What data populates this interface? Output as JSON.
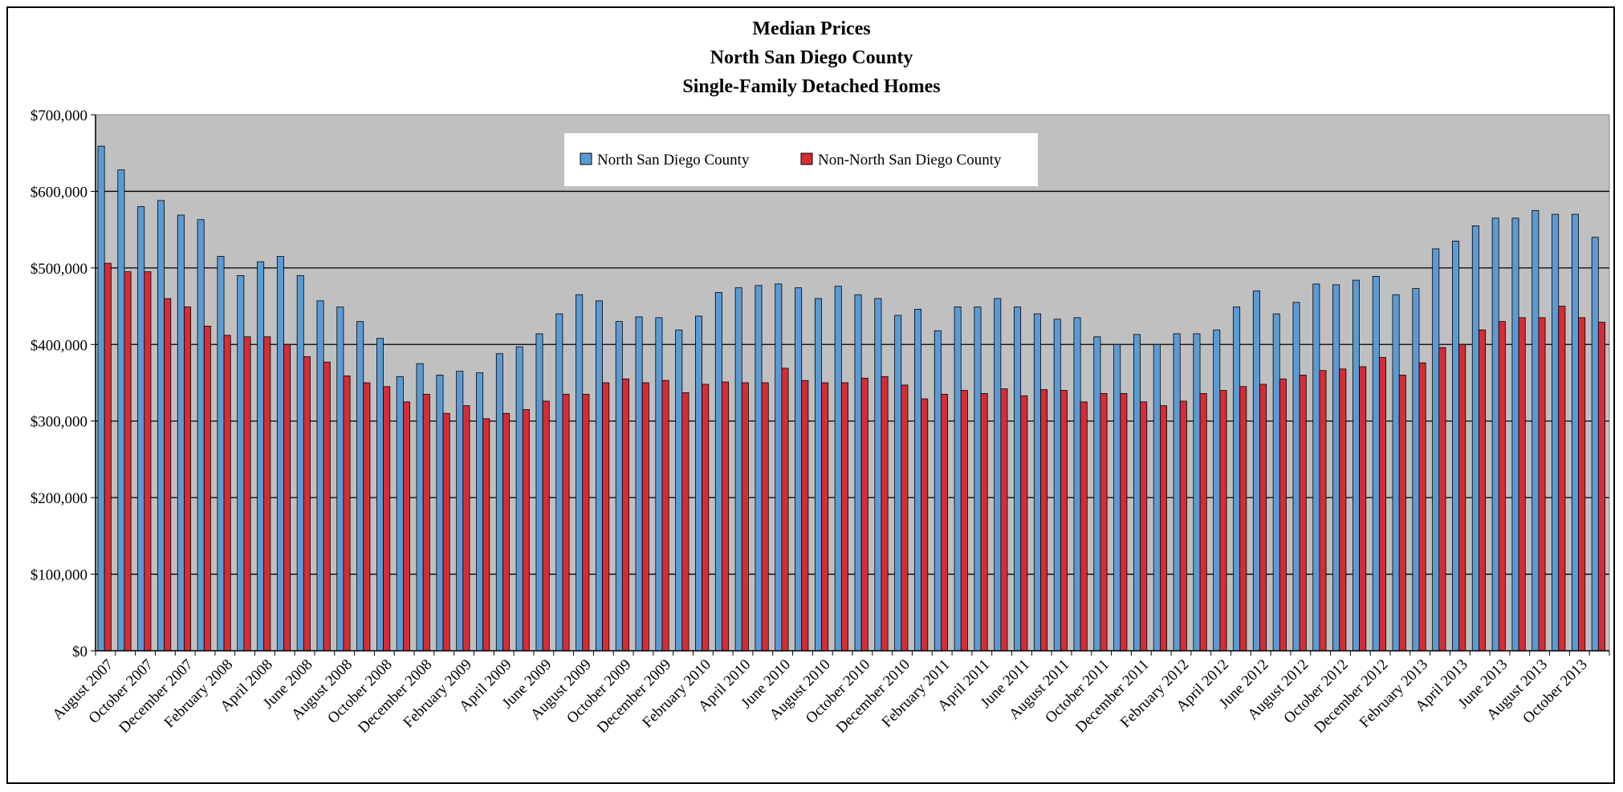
{
  "chart_data": {
    "type": "bar",
    "title_lines": [
      "Median Prices",
      "North San Diego County",
      "Single-Family Detached Homes"
    ],
    "ylim": [
      0,
      700000
    ],
    "y_ticks": [
      "$0",
      "$100,000",
      "$200,000",
      "$300,000",
      "$400,000",
      "$500,000",
      "$600,000",
      "$700,000"
    ],
    "grid": true,
    "legend_position": "top-center",
    "legend": [
      {
        "name": "North San Diego County",
        "color": "#5b9bd5"
      },
      {
        "name": "Non-North San Diego County",
        "color": "#d62c35"
      }
    ],
    "x_labels": [
      "August 2007",
      "October 2007",
      "December 2007",
      "February 2008",
      "April 2008",
      "June 2008",
      "August 2008",
      "October 2008",
      "December 2008",
      "February 2009",
      "April 2009",
      "June 2009",
      "August 2009",
      "October 2009",
      "December 2009",
      "February 2010",
      "April 2010",
      "June 2010",
      "August 2010",
      "October 2010",
      "December 2010",
      "February 2011",
      "April 2011",
      "June 2011",
      "August 2011",
      "October 2011",
      "December 2011",
      "February 2012",
      "April 2012",
      "June 2012",
      "August 2012",
      "October 2012",
      "December 2012",
      "February 2013",
      "April 2013",
      "June 2013",
      "August 2013",
      "October 2013"
    ],
    "series": [
      {
        "name": "North San Diego County",
        "values": [
          659000,
          628000,
          580000,
          588000,
          569000,
          563000,
          515000,
          490000,
          508000,
          515000,
          490000,
          457000,
          449000,
          430000,
          408000,
          358000,
          375000,
          360000,
          365000,
          363000,
          388000,
          397000,
          414000,
          440000,
          465000,
          457000,
          430000,
          436000,
          435000,
          419000,
          437000,
          468000,
          474000,
          477000,
          479000,
          474000,
          460000,
          476000,
          465000,
          460000,
          438000,
          446000,
          418000,
          449000,
          449000,
          460000,
          449000,
          440000,
          433000,
          435000,
          410000,
          400000,
          413000,
          400000,
          414000,
          414000,
          419000,
          449000,
          470000,
          440000,
          455000,
          479000,
          478000,
          484000,
          489000,
          465000,
          473000,
          525000,
          535000,
          555000,
          565000,
          565000,
          575000,
          570000,
          570000,
          540000
        ]
      },
      {
        "name": "Non-North San Diego County",
        "values": [
          506000,
          495000,
          495000,
          460000,
          449000,
          424000,
          412000,
          410000,
          410000,
          400000,
          384000,
          377000,
          359000,
          350000,
          345000,
          325000,
          335000,
          310000,
          320000,
          303000,
          310000,
          315000,
          326000,
          335000,
          335000,
          350000,
          355000,
          350000,
          353000,
          337000,
          348000,
          351000,
          350000,
          350000,
          369000,
          353000,
          350000,
          350000,
          356000,
          358000,
          347000,
          329000,
          335000,
          340000,
          336000,
          342000,
          333000,
          341000,
          340000,
          325000,
          336000,
          336000,
          325000,
          320000,
          326000,
          336000,
          340000,
          345000,
          348000,
          355000,
          360000,
          366000,
          368000,
          371000,
          383000,
          360000,
          376000,
          396000,
          400000,
          419000,
          430000,
          435000,
          435000,
          450000,
          435000,
          429000
        ]
      }
    ]
  }
}
